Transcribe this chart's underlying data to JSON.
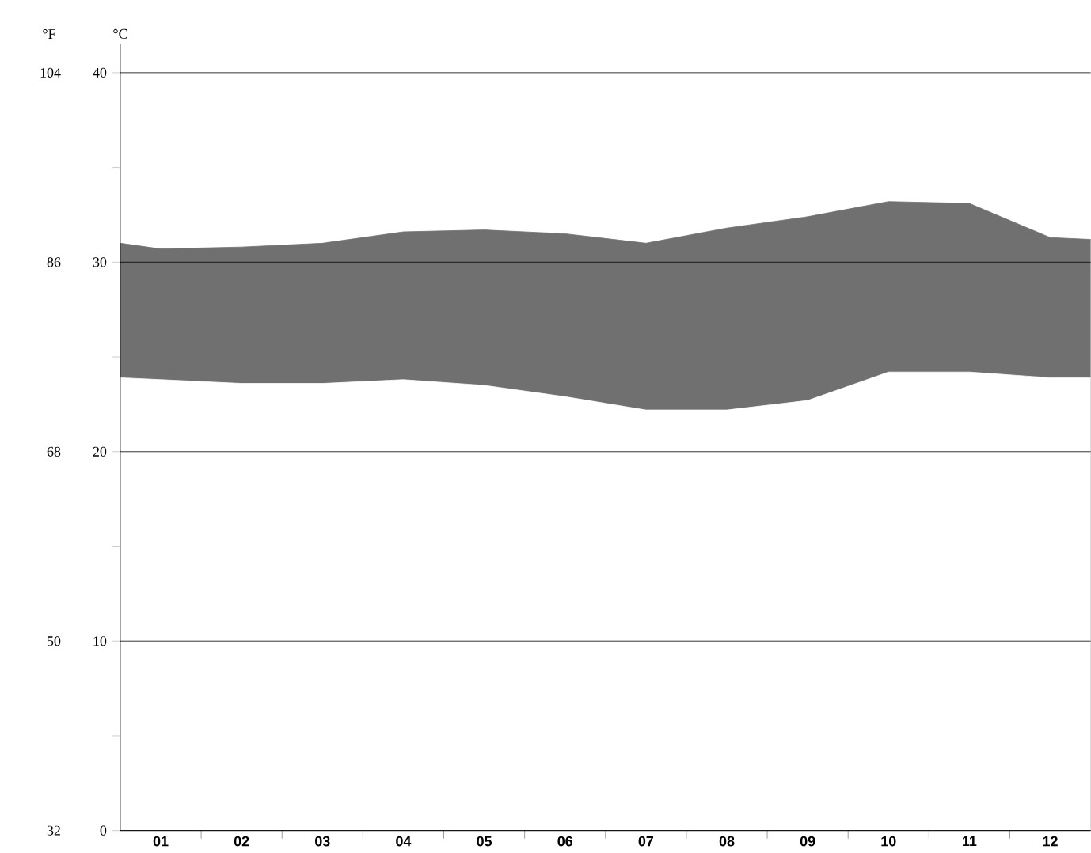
{
  "chart_data": {
    "type": "area",
    "x": [
      0.5,
      1,
      2,
      3,
      4,
      5,
      6,
      7,
      8,
      9,
      10,
      11,
      12,
      12.5
    ],
    "series": [
      {
        "color": "#707070",
        "values": [
          31.0,
          30.7,
          30.8,
          31.0,
          31.6,
          31.7,
          31.5,
          31.0,
          31.8,
          32.4,
          33.2,
          33.1,
          31.3,
          31.2
        ]
      },
      {
        "color": "#ffffff",
        "values": [
          23.9,
          23.8,
          23.6,
          23.6,
          23.8,
          23.5,
          22.9,
          22.2,
          22.2,
          22.7,
          24.2,
          24.2,
          23.9,
          23.9
        ]
      }
    ],
    "xlim": [
      0.5,
      12.5
    ],
    "xticks": [
      {
        "value": 1,
        "label": "01"
      },
      {
        "value": 2,
        "label": "02"
      },
      {
        "value": 3,
        "label": "03"
      },
      {
        "value": 4,
        "label": "04"
      },
      {
        "value": 5,
        "label": "05"
      },
      {
        "value": 6,
        "label": "06"
      },
      {
        "value": 7,
        "label": "07"
      },
      {
        "value": 8,
        "label": "08"
      },
      {
        "value": 9,
        "label": "09"
      },
      {
        "value": 10,
        "label": "10"
      },
      {
        "value": 11,
        "label": "11"
      },
      {
        "value": 12,
        "label": "12"
      },
      {
        "value": 1.5,
        "label": null
      },
      {
        "value": 2.5,
        "label": null
      },
      {
        "value": 3.5,
        "label": null
      },
      {
        "value": 4.5,
        "label": null
      },
      {
        "value": 5.5,
        "label": null
      },
      {
        "value": 6.5,
        "label": null
      },
      {
        "value": 7.5,
        "label": null
      },
      {
        "value": 8.5,
        "label": null
      },
      {
        "value": 9.5,
        "label": null
      },
      {
        "value": 10.5,
        "label": null
      },
      {
        "value": 11.5,
        "label": null
      }
    ],
    "ylim": [
      0,
      41.5
    ],
    "yticks": [
      0,
      10,
      20,
      30,
      40,
      {
        "value": 5,
        "label": null
      },
      {
        "value": 15,
        "label": null
      },
      {
        "value": 25,
        "label": null
      },
      {
        "value": 35,
        "label": null
      }
    ],
    "ylabel": "°C",
    "y2lim": [
      32,
      106.7
    ],
    "y2ticks": [
      32,
      50,
      68,
      86,
      104
    ],
    "y2label": "°F",
    "grid": "y"
  }
}
